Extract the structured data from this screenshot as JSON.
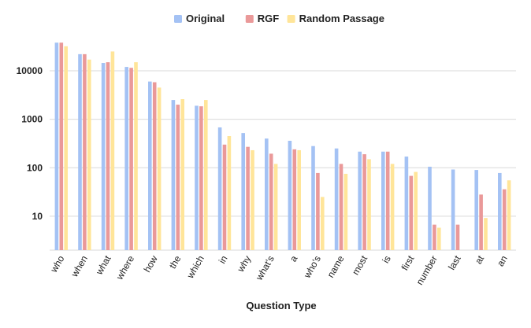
{
  "chart_data": {
    "type": "bar",
    "title": "",
    "xlabel": "Question Type",
    "ylabel": "",
    "yscale": "log",
    "ylim": [
      2,
      60000
    ],
    "grid": true,
    "legend_position": "top-center",
    "categories": [
      "who",
      "when",
      "what",
      "where",
      "how",
      "the",
      "which",
      "in",
      "why",
      "what's",
      "a",
      "who's",
      "name",
      "most",
      "is",
      "first",
      "number",
      "last",
      "at",
      "an"
    ],
    "y_ticks": [
      10,
      100,
      1000,
      10000
    ],
    "y_tick_labels": [
      "10",
      "100",
      "1000",
      "10000"
    ],
    "series": [
      {
        "name": "Original",
        "color": "#a4c2f4",
        "values": [
          38000,
          22000,
          14500,
          12000,
          6000,
          2500,
          1900,
          680,
          520,
          400,
          360,
          280,
          250,
          215,
          215,
          170,
          105,
          92,
          90,
          78
        ]
      },
      {
        "name": "RGF",
        "color": "#ea9999",
        "values": [
          38000,
          22000,
          15000,
          11500,
          5800,
          2000,
          1850,
          300,
          270,
          195,
          240,
          78,
          120,
          190,
          215,
          68,
          6.7,
          6.7,
          28,
          36
        ]
      },
      {
        "name": "Random Passage",
        "color": "#ffe599",
        "values": [
          32000,
          17000,
          25000,
          15000,
          4500,
          2600,
          2500,
          450,
          230,
          120,
          230,
          25,
          75,
          150,
          120,
          82,
          5.8,
          null,
          9.2,
          55
        ]
      }
    ]
  }
}
